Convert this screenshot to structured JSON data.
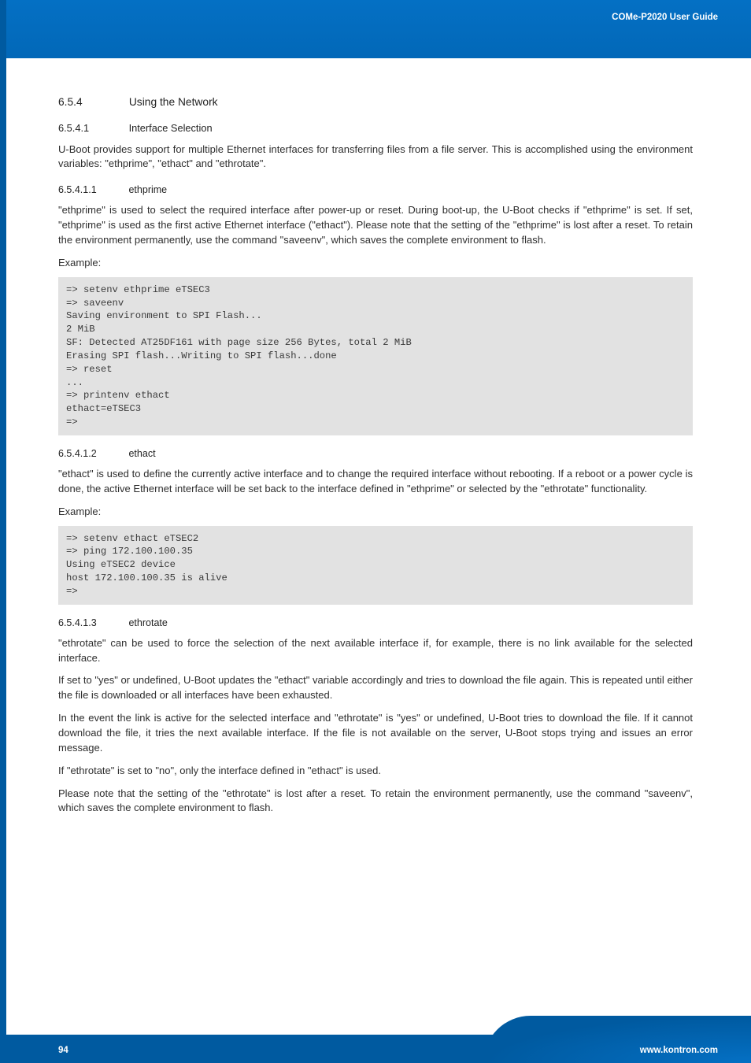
{
  "header": {
    "badge": "COMe-P2020 User Guide"
  },
  "sections": {
    "s654": {
      "num": "6.5.4",
      "title": "Using the Network"
    },
    "s6541": {
      "num": "6.5.4.1",
      "title": "Interface Selection"
    },
    "p_intro": "U-Boot provides support for multiple Ethernet interfaces for transferring files from a file server. This is accomplished using the environment variables: \"ethprime\", \"ethact\" and \"ethrotate\".",
    "s65411": {
      "num": "6.5.4.1.1",
      "title": "ethprime"
    },
    "p_ethprime": "\"ethprime\" is used to select the required interface after power-up or reset. During boot-up, the U-Boot checks if \"ethprime\" is set. If set, \"ethprime\" is used as the first active Ethernet interface (\"ethact\"). Please note that the setting of the \"ethprime\" is lost after a reset. To retain the environment permanently, use the command \"saveenv\", which saves the complete environment to flash.",
    "example_label": "Example:",
    "code_ethprime": "=> setenv ethprime eTSEC3\n=> saveenv\nSaving environment to SPI Flash...\n2 MiB\nSF: Detected AT25DF161 with page size 256 Bytes, total 2 MiB\nErasing SPI flash...Writing to SPI flash...done\n=> reset\n...\n=> printenv ethact\nethact=eTSEC3\n=>",
    "s65412": {
      "num": "6.5.4.1.2",
      "title": "ethact"
    },
    "p_ethact": "\"ethact\" is used to define the currently active interface and to change the required interface without rebooting. If a reboot or a power cycle is done, the active Ethernet interface will be set back to the interface defined in \"ethprime\" or selected by the \"ethrotate\" functionality.",
    "code_ethact": "=> setenv ethact eTSEC2\n=> ping 172.100.100.35\nUsing eTSEC2 device\nhost 172.100.100.35 is alive\n=>",
    "s65413": {
      "num": "6.5.4.1.3",
      "title": "ethrotate"
    },
    "p_ethrotate1": "\"ethrotate\" can be used to force the selection of the next available interface if, for example, there is no link available for the selected interface.",
    "p_ethrotate2": "If set to \"yes\" or undefined, U-Boot updates the \"ethact\" variable accordingly and tries to download the file again. This is repeated until either the file is downloaded or all interfaces have been exhausted.",
    "p_ethrotate3": "In the event the link is active for the selected interface and \"ethrotate\" is \"yes\" or undefined, U-Boot tries to download the file. If it cannot download the file, it tries the next available interface. If the file is not available on the server, U-Boot stops trying and issues an error message.",
    "p_ethrotate4": "If \"ethrotate\" is set to \"no\", only the interface defined in \"ethact\" is used.",
    "p_ethrotate5": "Please note that the setting of the \"ethrotate\" is lost after a reset. To retain the environment permanently, use the command \"saveenv\", which saves the complete environment to flash."
  },
  "footer": {
    "page_number": "94",
    "url": "www.kontron.com"
  },
  "colors": {
    "header_blue": "#0268b8",
    "code_bg": "#e2e2e2",
    "footer_blue": "#005aa0",
    "text": "#2e2e2e"
  }
}
